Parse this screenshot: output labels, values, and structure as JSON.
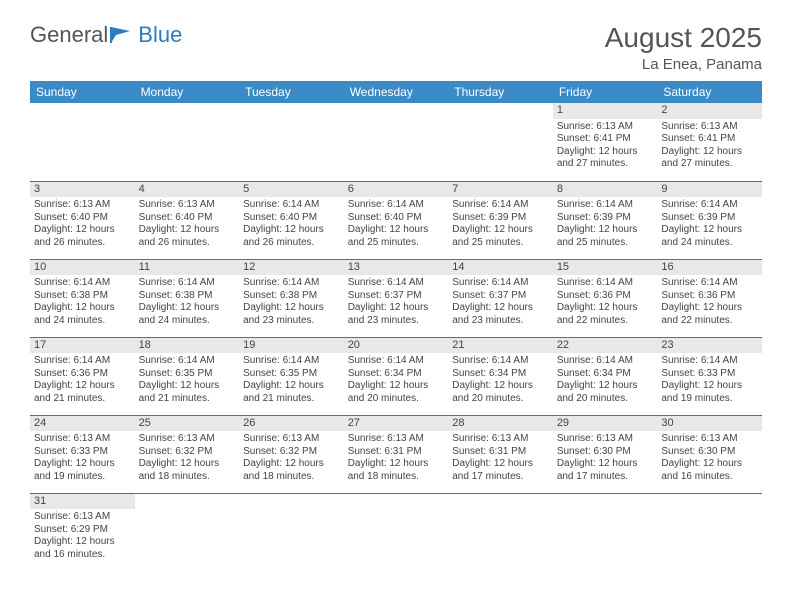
{
  "logo": {
    "part1": "General",
    "part2": "Blue"
  },
  "title": "August 2025",
  "location": "La Enea, Panama",
  "weekdays": [
    "Sunday",
    "Monday",
    "Tuesday",
    "Wednesday",
    "Thursday",
    "Friday",
    "Saturday"
  ],
  "colors": {
    "header_bg": "#3a8ac8",
    "border": "#2e7cc0",
    "daynum_bg": "#e8e8e8",
    "text": "#444444"
  },
  "weeks": [
    [
      null,
      null,
      null,
      null,
      null,
      {
        "n": "1",
        "sr": "Sunrise: 6:13 AM",
        "ss": "Sunset: 6:41 PM",
        "d1": "Daylight: 12 hours",
        "d2": "and 27 minutes."
      },
      {
        "n": "2",
        "sr": "Sunrise: 6:13 AM",
        "ss": "Sunset: 6:41 PM",
        "d1": "Daylight: 12 hours",
        "d2": "and 27 minutes."
      }
    ],
    [
      {
        "n": "3",
        "sr": "Sunrise: 6:13 AM",
        "ss": "Sunset: 6:40 PM",
        "d1": "Daylight: 12 hours",
        "d2": "and 26 minutes."
      },
      {
        "n": "4",
        "sr": "Sunrise: 6:13 AM",
        "ss": "Sunset: 6:40 PM",
        "d1": "Daylight: 12 hours",
        "d2": "and 26 minutes."
      },
      {
        "n": "5",
        "sr": "Sunrise: 6:14 AM",
        "ss": "Sunset: 6:40 PM",
        "d1": "Daylight: 12 hours",
        "d2": "and 26 minutes."
      },
      {
        "n": "6",
        "sr": "Sunrise: 6:14 AM",
        "ss": "Sunset: 6:40 PM",
        "d1": "Daylight: 12 hours",
        "d2": "and 25 minutes."
      },
      {
        "n": "7",
        "sr": "Sunrise: 6:14 AM",
        "ss": "Sunset: 6:39 PM",
        "d1": "Daylight: 12 hours",
        "d2": "and 25 minutes."
      },
      {
        "n": "8",
        "sr": "Sunrise: 6:14 AM",
        "ss": "Sunset: 6:39 PM",
        "d1": "Daylight: 12 hours",
        "d2": "and 25 minutes."
      },
      {
        "n": "9",
        "sr": "Sunrise: 6:14 AM",
        "ss": "Sunset: 6:39 PM",
        "d1": "Daylight: 12 hours",
        "d2": "and 24 minutes."
      }
    ],
    [
      {
        "n": "10",
        "sr": "Sunrise: 6:14 AM",
        "ss": "Sunset: 6:38 PM",
        "d1": "Daylight: 12 hours",
        "d2": "and 24 minutes."
      },
      {
        "n": "11",
        "sr": "Sunrise: 6:14 AM",
        "ss": "Sunset: 6:38 PM",
        "d1": "Daylight: 12 hours",
        "d2": "and 24 minutes."
      },
      {
        "n": "12",
        "sr": "Sunrise: 6:14 AM",
        "ss": "Sunset: 6:38 PM",
        "d1": "Daylight: 12 hours",
        "d2": "and 23 minutes."
      },
      {
        "n": "13",
        "sr": "Sunrise: 6:14 AM",
        "ss": "Sunset: 6:37 PM",
        "d1": "Daylight: 12 hours",
        "d2": "and 23 minutes."
      },
      {
        "n": "14",
        "sr": "Sunrise: 6:14 AM",
        "ss": "Sunset: 6:37 PM",
        "d1": "Daylight: 12 hours",
        "d2": "and 23 minutes."
      },
      {
        "n": "15",
        "sr": "Sunrise: 6:14 AM",
        "ss": "Sunset: 6:36 PM",
        "d1": "Daylight: 12 hours",
        "d2": "and 22 minutes."
      },
      {
        "n": "16",
        "sr": "Sunrise: 6:14 AM",
        "ss": "Sunset: 6:36 PM",
        "d1": "Daylight: 12 hours",
        "d2": "and 22 minutes."
      }
    ],
    [
      {
        "n": "17",
        "sr": "Sunrise: 6:14 AM",
        "ss": "Sunset: 6:36 PM",
        "d1": "Daylight: 12 hours",
        "d2": "and 21 minutes."
      },
      {
        "n": "18",
        "sr": "Sunrise: 6:14 AM",
        "ss": "Sunset: 6:35 PM",
        "d1": "Daylight: 12 hours",
        "d2": "and 21 minutes."
      },
      {
        "n": "19",
        "sr": "Sunrise: 6:14 AM",
        "ss": "Sunset: 6:35 PM",
        "d1": "Daylight: 12 hours",
        "d2": "and 21 minutes."
      },
      {
        "n": "20",
        "sr": "Sunrise: 6:14 AM",
        "ss": "Sunset: 6:34 PM",
        "d1": "Daylight: 12 hours",
        "d2": "and 20 minutes."
      },
      {
        "n": "21",
        "sr": "Sunrise: 6:14 AM",
        "ss": "Sunset: 6:34 PM",
        "d1": "Daylight: 12 hours",
        "d2": "and 20 minutes."
      },
      {
        "n": "22",
        "sr": "Sunrise: 6:14 AM",
        "ss": "Sunset: 6:34 PM",
        "d1": "Daylight: 12 hours",
        "d2": "and 20 minutes."
      },
      {
        "n": "23",
        "sr": "Sunrise: 6:14 AM",
        "ss": "Sunset: 6:33 PM",
        "d1": "Daylight: 12 hours",
        "d2": "and 19 minutes."
      }
    ],
    [
      {
        "n": "24",
        "sr": "Sunrise: 6:13 AM",
        "ss": "Sunset: 6:33 PM",
        "d1": "Daylight: 12 hours",
        "d2": "and 19 minutes."
      },
      {
        "n": "25",
        "sr": "Sunrise: 6:13 AM",
        "ss": "Sunset: 6:32 PM",
        "d1": "Daylight: 12 hours",
        "d2": "and 18 minutes."
      },
      {
        "n": "26",
        "sr": "Sunrise: 6:13 AM",
        "ss": "Sunset: 6:32 PM",
        "d1": "Daylight: 12 hours",
        "d2": "and 18 minutes."
      },
      {
        "n": "27",
        "sr": "Sunrise: 6:13 AM",
        "ss": "Sunset: 6:31 PM",
        "d1": "Daylight: 12 hours",
        "d2": "and 18 minutes."
      },
      {
        "n": "28",
        "sr": "Sunrise: 6:13 AM",
        "ss": "Sunset: 6:31 PM",
        "d1": "Daylight: 12 hours",
        "d2": "and 17 minutes."
      },
      {
        "n": "29",
        "sr": "Sunrise: 6:13 AM",
        "ss": "Sunset: 6:30 PM",
        "d1": "Daylight: 12 hours",
        "d2": "and 17 minutes."
      },
      {
        "n": "30",
        "sr": "Sunrise: 6:13 AM",
        "ss": "Sunset: 6:30 PM",
        "d1": "Daylight: 12 hours",
        "d2": "and 16 minutes."
      }
    ],
    [
      {
        "n": "31",
        "sr": "Sunrise: 6:13 AM",
        "ss": "Sunset: 6:29 PM",
        "d1": "Daylight: 12 hours",
        "d2": "and 16 minutes."
      },
      null,
      null,
      null,
      null,
      null,
      null
    ]
  ]
}
